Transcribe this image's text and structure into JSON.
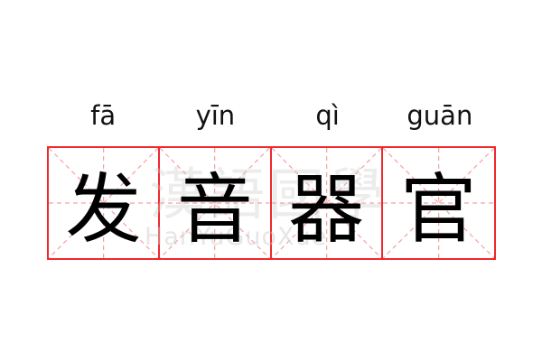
{
  "words": [
    {
      "pinyin": "fā",
      "char": "发"
    },
    {
      "pinyin": "yīn",
      "char": "音"
    },
    {
      "pinyin": "qì",
      "char": "器"
    },
    {
      "pinyin": "guān",
      "char": "官"
    }
  ],
  "watermark": {
    "cn": "漢語國學",
    "en": "HanYuGuoXue"
  },
  "colors": {
    "grid": "#f0282d",
    "guide": "#f6a0a0"
  }
}
